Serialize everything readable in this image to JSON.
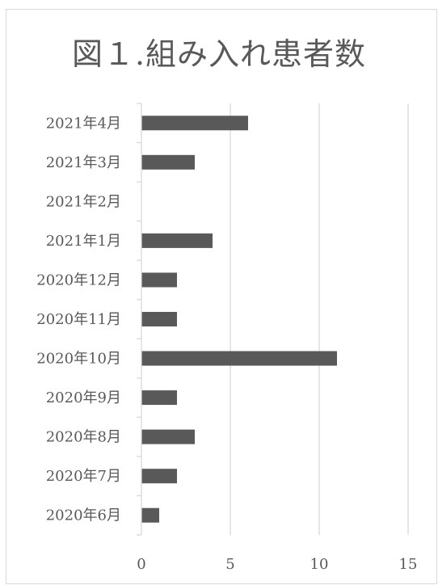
{
  "chart_data": {
    "type": "bar",
    "orientation": "horizontal",
    "title": "図１.組み入れ患者数",
    "categories": [
      "2021年4月",
      "2021年3月",
      "2021年2月",
      "2021年1月",
      "2020年12月",
      "2020年11月",
      "2020年10月",
      "2020年9月",
      "2020年8月",
      "2020年7月",
      "2020年6月"
    ],
    "values": [
      6,
      3,
      0,
      4,
      2,
      2,
      11,
      2,
      3,
      2,
      1
    ],
    "xlim": [
      0,
      15
    ],
    "x_ticks": [
      0,
      5,
      10,
      15
    ],
    "x_tick_labels": [
      "0",
      "5",
      "10",
      "15"
    ],
    "xlabel": "",
    "ylabel": "",
    "grid": "vertical",
    "legend": "none",
    "colors": {
      "bar": "#595959",
      "grid": "#d9d9d9",
      "axis": "#d9d9d9",
      "text": "#595959"
    }
  }
}
